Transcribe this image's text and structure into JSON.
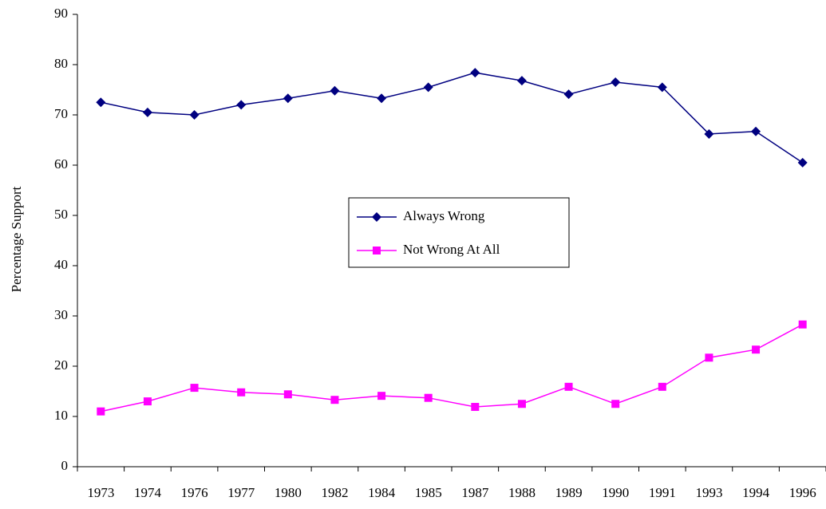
{
  "chart_data": {
    "type": "line",
    "ylabel": "Percentage Support",
    "categories": [
      "1973",
      "1974",
      "1976",
      "1977",
      "1980",
      "1982",
      "1984",
      "1985",
      "1987",
      "1988",
      "1989",
      "1990",
      "1991",
      "1993",
      "1994",
      "1996"
    ],
    "series": [
      {
        "name": "Always Wrong",
        "color": "#000080",
        "marker": "diamond",
        "values": [
          72.5,
          70.5,
          70,
          72,
          73.3,
          74.8,
          73.3,
          75.5,
          78.4,
          76.8,
          74.1,
          76.5,
          75.5,
          66.2,
          66.7,
          60.5
        ]
      },
      {
        "name": "Not Wrong At All",
        "color": "#ff00ff",
        "marker": "square",
        "values": [
          11,
          13,
          15.7,
          14.8,
          14.4,
          13.3,
          14.1,
          13.7,
          11.9,
          12.5,
          15.9,
          12.5,
          15.9,
          21.7,
          23.3,
          28.3
        ]
      }
    ],
    "ylim": [
      0,
      90
    ],
    "yticks": [
      0,
      10,
      20,
      30,
      40,
      50,
      60,
      70,
      80,
      90
    ],
    "grid": false,
    "legend": "center"
  }
}
